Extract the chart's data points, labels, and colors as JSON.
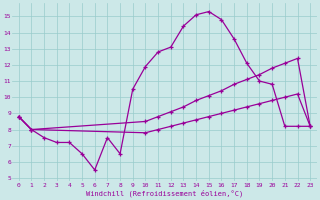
{
  "bg_color": "#cce8e8",
  "grid_color": "#99cccc",
  "line_color": "#990099",
  "xlim": [
    -0.5,
    23.5
  ],
  "ylim": [
    4.8,
    15.8
  ],
  "yticks": [
    5,
    6,
    7,
    8,
    9,
    10,
    11,
    12,
    13,
    14,
    15
  ],
  "xticks": [
    0,
    1,
    2,
    3,
    4,
    5,
    6,
    7,
    8,
    9,
    10,
    11,
    12,
    13,
    14,
    15,
    16,
    17,
    18,
    19,
    20,
    21,
    22,
    23
  ],
  "xlabel": "Windchill (Refroidissement éolien,°C)",
  "line1_x": [
    0,
    1,
    2,
    3,
    4,
    5,
    6,
    7,
    8,
    9,
    10,
    11,
    12,
    13,
    14,
    15,
    16,
    17,
    18,
    19,
    20,
    21,
    22,
    23
  ],
  "line1_y": [
    8.8,
    8.0,
    7.5,
    7.2,
    7.2,
    6.5,
    5.5,
    7.5,
    6.5,
    10.5,
    11.9,
    12.8,
    13.1,
    14.4,
    15.1,
    15.3,
    14.8,
    13.6,
    12.1,
    11.0,
    10.8,
    8.2,
    8.2,
    8.2
  ],
  "line2_x": [
    0,
    1,
    10,
    11,
    12,
    13,
    14,
    15,
    16,
    17,
    18,
    19,
    20,
    21,
    22,
    23
  ],
  "line2_y": [
    8.8,
    8.0,
    8.5,
    8.8,
    9.1,
    9.4,
    9.8,
    10.1,
    10.4,
    10.8,
    11.1,
    11.4,
    11.8,
    12.1,
    12.4,
    8.2
  ],
  "line3_x": [
    0,
    1,
    10,
    11,
    12,
    13,
    14,
    15,
    16,
    17,
    18,
    19,
    20,
    21,
    22,
    23
  ],
  "line3_y": [
    8.8,
    8.0,
    7.8,
    8.0,
    8.2,
    8.4,
    8.6,
    8.8,
    9.0,
    9.2,
    9.4,
    9.6,
    9.8,
    10.0,
    10.2,
    8.2
  ]
}
